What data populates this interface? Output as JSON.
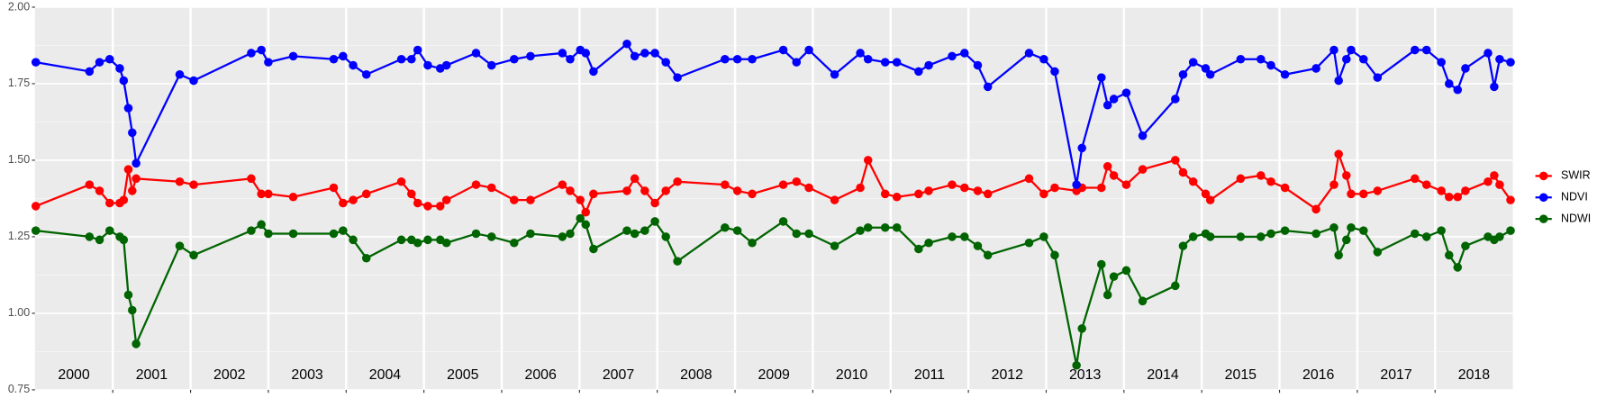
{
  "chart_data": {
    "type": "line",
    "x": [
      2000.01,
      2000.7,
      2000.83,
      2000.96,
      2001.09,
      2001.14,
      2001.2,
      2001.25,
      2001.3,
      2001.86,
      2002.04,
      2002.78,
      2002.91,
      2003.0,
      2003.32,
      2003.84,
      2003.96,
      2004.09,
      2004.26,
      2004.71,
      2004.84,
      2004.92,
      2005.05,
      2005.21,
      2005.29,
      2005.67,
      2005.87,
      2006.16,
      2006.37,
      2006.78,
      2006.88,
      2007.01,
      2007.08,
      2007.18,
      2007.61,
      2007.71,
      2007.84,
      2007.97,
      2008.11,
      2008.26,
      2008.87,
      2009.03,
      2009.22,
      2009.62,
      2009.79,
      2009.95,
      2010.28,
      2010.61,
      2010.71,
      2010.93,
      2011.08,
      2011.36,
      2011.49,
      2011.79,
      2011.95,
      2012.12,
      2012.25,
      2012.78,
      2012.97,
      2013.11,
      2013.39,
      2013.46,
      2013.71,
      2013.79,
      2013.87,
      2014.03,
      2014.24,
      2014.66,
      2014.76,
      2014.89,
      2015.05,
      2015.11,
      2015.5,
      2015.76,
      2015.89,
      2016.07,
      2016.47,
      2016.7,
      2016.76,
      2016.86,
      2016.92,
      2017.08,
      2017.26,
      2017.74,
      2017.89,
      2018.08,
      2018.18,
      2018.29,
      2018.39,
      2018.68,
      2018.76,
      2018.83,
      2018.97
    ],
    "series": [
      {
        "name": "SWIR",
        "color": "#ff0000",
        "values": [
          1.35,
          1.42,
          1.4,
          1.36,
          1.36,
          1.37,
          1.47,
          1.4,
          1.44,
          1.43,
          1.42,
          1.44,
          1.39,
          1.39,
          1.38,
          1.41,
          1.36,
          1.37,
          1.39,
          1.43,
          1.39,
          1.36,
          1.35,
          1.35,
          1.37,
          1.42,
          1.41,
          1.37,
          1.37,
          1.42,
          1.4,
          1.37,
          1.33,
          1.39,
          1.4,
          1.44,
          1.4,
          1.36,
          1.4,
          1.43,
          1.42,
          1.4,
          1.39,
          1.42,
          1.43,
          1.41,
          1.37,
          1.41,
          1.5,
          1.39,
          1.38,
          1.39,
          1.4,
          1.42,
          1.41,
          1.4,
          1.39,
          1.44,
          1.39,
          1.41,
          1.4,
          1.41,
          1.41,
          1.48,
          1.45,
          1.42,
          1.47,
          1.5,
          1.46,
          1.43,
          1.39,
          1.37,
          1.44,
          1.45,
          1.43,
          1.41,
          1.34,
          1.42,
          1.52,
          1.45,
          1.39,
          1.39,
          1.4,
          1.44,
          1.42,
          1.4,
          1.38,
          1.38,
          1.4,
          1.43,
          1.45,
          1.42,
          1.37
        ]
      },
      {
        "name": "NDVI",
        "color": "#0000ff",
        "values": [
          1.82,
          1.79,
          1.82,
          1.83,
          1.8,
          1.76,
          1.67,
          1.59,
          1.49,
          1.78,
          1.76,
          1.85,
          1.86,
          1.82,
          1.84,
          1.83,
          1.84,
          1.81,
          1.78,
          1.83,
          1.83,
          1.86,
          1.81,
          1.8,
          1.81,
          1.85,
          1.81,
          1.83,
          1.84,
          1.85,
          1.83,
          1.86,
          1.85,
          1.79,
          1.88,
          1.84,
          1.85,
          1.85,
          1.82,
          1.77,
          1.83,
          1.83,
          1.83,
          1.86,
          1.82,
          1.86,
          1.78,
          1.85,
          1.83,
          1.82,
          1.82,
          1.79,
          1.81,
          1.84,
          1.85,
          1.81,
          1.74,
          1.85,
          1.83,
          1.79,
          1.42,
          1.54,
          1.77,
          1.68,
          1.7,
          1.72,
          1.58,
          1.7,
          1.78,
          1.82,
          1.8,
          1.78,
          1.83,
          1.83,
          1.81,
          1.78,
          1.8,
          1.86,
          1.76,
          1.83,
          1.86,
          1.83,
          1.77,
          1.86,
          1.86,
          1.82,
          1.75,
          1.73,
          1.8,
          1.85,
          1.74,
          1.83,
          1.82
        ]
      },
      {
        "name": "NDWI",
        "color": "#006400",
        "values": [
          1.27,
          1.25,
          1.24,
          1.27,
          1.25,
          1.24,
          1.06,
          1.01,
          0.9,
          1.22,
          1.19,
          1.27,
          1.29,
          1.26,
          1.26,
          1.26,
          1.27,
          1.24,
          1.18,
          1.24,
          1.24,
          1.23,
          1.24,
          1.24,
          1.23,
          1.26,
          1.25,
          1.23,
          1.26,
          1.25,
          1.26,
          1.31,
          1.29,
          1.21,
          1.27,
          1.26,
          1.27,
          1.3,
          1.25,
          1.17,
          1.28,
          1.27,
          1.23,
          1.3,
          1.26,
          1.26,
          1.22,
          1.27,
          1.28,
          1.28,
          1.28,
          1.21,
          1.23,
          1.25,
          1.25,
          1.22,
          1.19,
          1.23,
          1.25,
          1.19,
          0.83,
          0.95,
          1.16,
          1.06,
          1.12,
          1.14,
          1.04,
          1.09,
          1.22,
          1.25,
          1.26,
          1.25,
          1.25,
          1.25,
          1.26,
          1.27,
          1.26,
          1.28,
          1.19,
          1.24,
          1.28,
          1.27,
          1.2,
          1.26,
          1.25,
          1.27,
          1.19,
          1.15,
          1.22,
          1.25,
          1.24,
          1.25,
          1.27
        ]
      }
    ],
    "year_labels": [
      "2000",
      "2001",
      "2002",
      "2003",
      "2004",
      "2005",
      "2006",
      "2007",
      "2008",
      "2009",
      "2010",
      "2011",
      "2012",
      "2013",
      "2014",
      "2015",
      "2016",
      "2017",
      "2018"
    ],
    "xlim": [
      2000,
      2019
    ],
    "xticks": [
      2001,
      2002,
      2003,
      2004,
      2005,
      2006,
      2007,
      2008,
      2009,
      2010,
      2011,
      2012,
      2013,
      2014,
      2015,
      2016,
      2017,
      2018
    ],
    "ylim": [
      0.75,
      2.0
    ],
    "yticks": [
      {
        "value": 0.75,
        "label": "0.75"
      },
      {
        "value": 1.0,
        "label": "1.00"
      },
      {
        "value": 1.25,
        "label": "1.25"
      },
      {
        "value": 1.5,
        "label": "1.50"
      },
      {
        "value": 1.75,
        "label": "1.75"
      },
      {
        "value": 2.0,
        "label": "2.00"
      }
    ],
    "grid": true,
    "legend": "right"
  }
}
